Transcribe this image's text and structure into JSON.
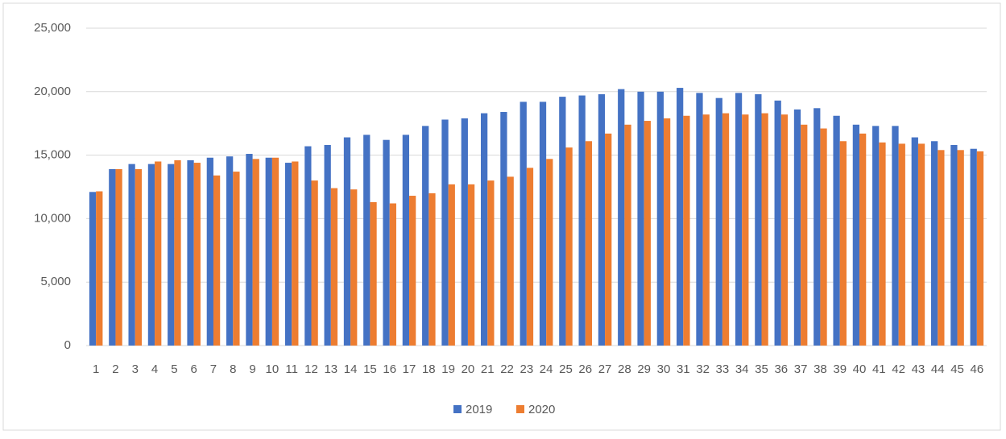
{
  "chart_data": {
    "type": "bar",
    "categories": [
      "1",
      "2",
      "3",
      "4",
      "5",
      "6",
      "7",
      "8",
      "9",
      "10",
      "11",
      "12",
      "13",
      "14",
      "15",
      "16",
      "17",
      "18",
      "19",
      "20",
      "21",
      "22",
      "23",
      "24",
      "25",
      "26",
      "27",
      "28",
      "29",
      "30",
      "31",
      "32",
      "33",
      "34",
      "35",
      "36",
      "37",
      "38",
      "39",
      "40",
      "41",
      "42",
      "43",
      "44",
      "45",
      "46"
    ],
    "series": [
      {
        "name": "2019",
        "color": "#4472c4",
        "values": [
          12100,
          13900,
          14300,
          14300,
          14300,
          14600,
          14800,
          14900,
          15100,
          14800,
          14400,
          15700,
          15800,
          16400,
          16600,
          16200,
          16600,
          17300,
          17800,
          17900,
          18300,
          18400,
          19200,
          19200,
          19600,
          19700,
          19800,
          20200,
          20000,
          20000,
          20300,
          19900,
          19500,
          19900,
          19800,
          19300,
          18600,
          18700,
          18100,
          17400,
          17300,
          17300,
          16400,
          16100,
          15800,
          15500
        ]
      },
      {
        "name": "2020",
        "color": "#ed7d31",
        "values": [
          12150,
          13900,
          13900,
          14500,
          14600,
          14400,
          13400,
          13700,
          14700,
          14800,
          14500,
          13000,
          12400,
          12300,
          11300,
          11200,
          11800,
          12000,
          12700,
          12700,
          13000,
          13300,
          14000,
          14700,
          15600,
          16100,
          16700,
          17400,
          17700,
          17900,
          18100,
          18200,
          18300,
          18200,
          18300,
          18200,
          17400,
          17100,
          16100,
          16700,
          16000,
          15900,
          15900,
          15400,
          15400,
          15300
        ]
      }
    ],
    "ylim": [
      0,
      25000
    ],
    "yticks": [
      0,
      {
        "value": 5000,
        "label": "5,000"
      },
      {
        "value": 10000,
        "label": "10,000"
      },
      {
        "value": 15000,
        "label": "15,000"
      },
      {
        "value": 20000,
        "label": "20,000"
      },
      {
        "value": 25000,
        "label": "25,000"
      }
    ],
    "grid": true,
    "legend": "bottom"
  }
}
